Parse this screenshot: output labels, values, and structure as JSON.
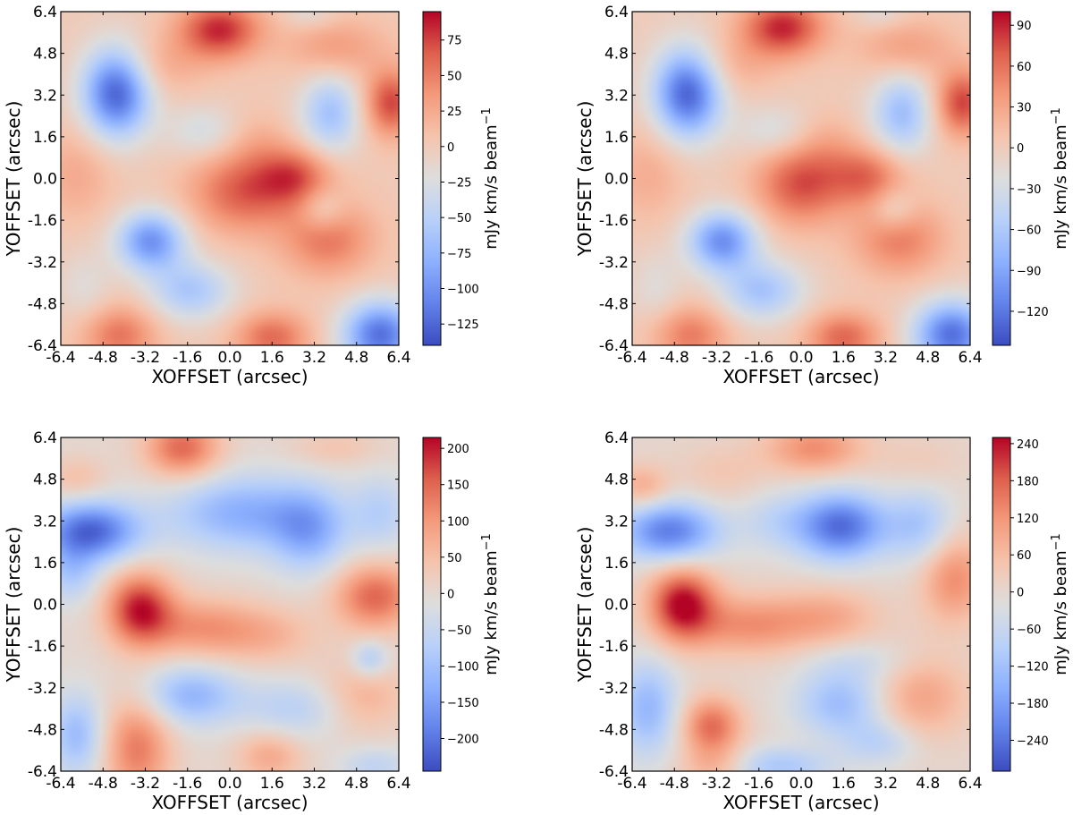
{
  "chart_data": [
    {
      "type": "heatmap",
      "xlabel": "XOFFSET (arcsec)",
      "ylabel": "YOFFSET (arcsec)",
      "x_ticks": [
        "-6.4",
        "-4.8",
        "-3.2",
        "-1.6",
        "0.0",
        "1.6",
        "3.2",
        "4.8",
        "6.4"
      ],
      "y_ticks": [
        "-6.4",
        "-4.8",
        "-3.2",
        "-1.6",
        "0.0",
        "1.6",
        "3.2",
        "4.8",
        "6.4"
      ],
      "xlim": [
        -6.4,
        6.4
      ],
      "ylim": [
        6.4,
        -6.4
      ],
      "colormap": "coolwarm",
      "colorbar": {
        "label_prefix": "mJy km/s beam",
        "label_exponent": "−1",
        "range": [
          -140,
          95
        ],
        "ticks": [
          75,
          50,
          25,
          0,
          -25,
          -50,
          -75,
          -100,
          -125
        ],
        "tick_labels": [
          "75",
          "50",
          "25",
          "0",
          "−25",
          "−50",
          "−75",
          "−100",
          "−125"
        ]
      },
      "blobs": [
        {
          "x": -4.2,
          "y": -6.0,
          "amp": 55,
          "sx": 1.0,
          "sy": 0.8
        },
        {
          "x": 1.6,
          "y": -6.1,
          "amp": 60,
          "sx": 1.0,
          "sy": 0.7
        },
        {
          "x": 5.7,
          "y": -6.0,
          "amp": -120,
          "sx": 1.0,
          "sy": 0.9
        },
        {
          "x": -1.5,
          "y": -4.3,
          "amp": -60,
          "sx": 1.1,
          "sy": 0.8
        },
        {
          "x": -5.5,
          "y": -4.2,
          "amp": -20,
          "sx": 0.7,
          "sy": 1.0
        },
        {
          "x": -3.0,
          "y": -2.4,
          "amp": -100,
          "sx": 0.9,
          "sy": 0.8
        },
        {
          "x": 0.5,
          "y": -0.5,
          "amp": 65,
          "sx": 1.4,
          "sy": 1.1
        },
        {
          "x": 2.5,
          "y": 0.1,
          "amp": 60,
          "sx": 1.0,
          "sy": 0.8
        },
        {
          "x": 3.7,
          "y": -2.3,
          "amp": 55,
          "sx": 1.2,
          "sy": 1.0
        },
        {
          "x": 3.5,
          "y": -1.2,
          "amp": -35,
          "sx": 0.6,
          "sy": 0.6
        },
        {
          "x": -5.8,
          "y": 0.2,
          "amp": 25,
          "sx": 1.0,
          "sy": 1.3
        },
        {
          "x": -4.3,
          "y": 3.3,
          "amp": -130,
          "sx": 0.9,
          "sy": 1.2
        },
        {
          "x": -1.0,
          "y": 1.8,
          "amp": -30,
          "sx": 1.0,
          "sy": 0.7
        },
        {
          "x": 3.8,
          "y": 2.5,
          "amp": -65,
          "sx": 0.8,
          "sy": 1.1
        },
        {
          "x": 6.1,
          "y": 2.9,
          "amp": 75,
          "sx": 0.7,
          "sy": 0.9
        },
        {
          "x": -0.4,
          "y": 5.7,
          "amp": 85,
          "sx": 1.1,
          "sy": 0.8
        },
        {
          "x": -2.8,
          "y": 4.3,
          "amp": 25,
          "sx": 1.2,
          "sy": 0.8
        },
        {
          "x": 4.0,
          "y": 5.0,
          "amp": 35,
          "sx": 1.3,
          "sy": 0.8
        },
        {
          "x": 3.0,
          "y": 6.3,
          "amp": -20,
          "sx": 0.7,
          "sy": 0.4
        },
        {
          "x": 1.0,
          "y": 1.5,
          "amp": 15,
          "sx": 0.8,
          "sy": 0.8
        }
      ]
    },
    {
      "type": "heatmap",
      "xlabel": "XOFFSET (arcsec)",
      "ylabel": "YOFFSET (arcsec)",
      "x_ticks": [
        "-6.4",
        "-4.8",
        "-3.2",
        "-1.6",
        "0.0",
        "1.6",
        "3.2",
        "4.8",
        "6.4"
      ],
      "y_ticks": [
        "-6.4",
        "-4.8",
        "-3.2",
        "-1.6",
        "0.0",
        "1.6",
        "3.2",
        "4.8",
        "6.4"
      ],
      "xlim": [
        -6.4,
        6.4
      ],
      "ylim": [
        6.4,
        -6.4
      ],
      "colormap": "coolwarm",
      "colorbar": {
        "label_prefix": "mJy km/s beam",
        "label_exponent": "−1",
        "range": [
          -145,
          100
        ],
        "ticks": [
          90,
          60,
          30,
          0,
          -30,
          -60,
          -90,
          -120
        ],
        "tick_labels": [
          "90",
          "60",
          "30",
          "0",
          "−30",
          "−60",
          "−90",
          "−120"
        ]
      },
      "blobs": [
        {
          "x": -4.2,
          "y": -6.0,
          "amp": 55,
          "sx": 1.0,
          "sy": 0.8
        },
        {
          "x": 1.6,
          "y": -6.1,
          "amp": 65,
          "sx": 1.0,
          "sy": 0.7
        },
        {
          "x": 5.7,
          "y": -6.0,
          "amp": -125,
          "sx": 1.0,
          "sy": 0.9
        },
        {
          "x": -1.5,
          "y": -4.3,
          "amp": -65,
          "sx": 1.1,
          "sy": 0.8
        },
        {
          "x": -5.5,
          "y": -4.2,
          "amp": -20,
          "sx": 0.7,
          "sy": 1.0
        },
        {
          "x": -3.0,
          "y": -2.4,
          "amp": -105,
          "sx": 0.9,
          "sy": 0.8
        },
        {
          "x": 0.0,
          "y": -0.2,
          "amp": 75,
          "sx": 1.2,
          "sy": 1.1
        },
        {
          "x": 2.5,
          "y": 0.1,
          "amp": 60,
          "sx": 1.0,
          "sy": 0.8
        },
        {
          "x": 3.7,
          "y": -2.3,
          "amp": 55,
          "sx": 1.2,
          "sy": 1.0
        },
        {
          "x": 3.5,
          "y": -1.2,
          "amp": -35,
          "sx": 0.6,
          "sy": 0.6
        },
        {
          "x": -5.8,
          "y": 0.2,
          "amp": 25,
          "sx": 1.0,
          "sy": 1.3
        },
        {
          "x": -4.3,
          "y": 3.3,
          "amp": -135,
          "sx": 0.9,
          "sy": 1.2
        },
        {
          "x": -1.0,
          "y": 1.8,
          "amp": -30,
          "sx": 1.0,
          "sy": 0.7
        },
        {
          "x": 3.8,
          "y": 2.5,
          "amp": -70,
          "sx": 0.8,
          "sy": 1.1
        },
        {
          "x": 6.1,
          "y": 2.9,
          "amp": 80,
          "sx": 0.7,
          "sy": 0.9
        },
        {
          "x": -0.7,
          "y": 5.8,
          "amp": 90,
          "sx": 1.1,
          "sy": 0.8
        },
        {
          "x": -2.8,
          "y": 4.3,
          "amp": 25,
          "sx": 1.2,
          "sy": 0.8
        },
        {
          "x": 4.0,
          "y": 5.0,
          "amp": 35,
          "sx": 1.3,
          "sy": 0.8
        },
        {
          "x": 3.0,
          "y": 6.3,
          "amp": -20,
          "sx": 0.7,
          "sy": 0.4
        },
        {
          "x": 1.0,
          "y": 1.5,
          "amp": 15,
          "sx": 0.8,
          "sy": 0.8
        }
      ]
    },
    {
      "type": "heatmap",
      "xlabel": "XOFFSET (arcsec)",
      "ylabel": "YOFFSET (arcsec)",
      "x_ticks": [
        "-6.4",
        "-4.8",
        "-3.2",
        "-1.6",
        "0.0",
        "1.6",
        "3.2",
        "4.8",
        "6.4"
      ],
      "y_ticks": [
        "-6.4",
        "-4.8",
        "-3.2",
        "-1.6",
        "0.0",
        "1.6",
        "3.2",
        "4.8",
        "6.4"
      ],
      "xlim": [
        -6.4,
        6.4
      ],
      "ylim": [
        6.4,
        -6.4
      ],
      "colormap": "coolwarm",
      "colorbar": {
        "label_prefix": "mJy km/s beam",
        "label_exponent": "−1",
        "range": [
          -245,
          215
        ],
        "ticks": [
          200,
          150,
          100,
          50,
          0,
          -50,
          -100,
          -150,
          -200
        ],
        "tick_labels": [
          "200",
          "150",
          "100",
          "50",
          "0",
          "−50",
          "−100",
          "−150",
          "−200"
        ]
      },
      "blobs": [
        {
          "x": -3.5,
          "y": -5.5,
          "amp": 130,
          "sx": 0.9,
          "sy": 1.4
        },
        {
          "x": 1.5,
          "y": -5.8,
          "amp": 80,
          "sx": 0.9,
          "sy": 0.7
        },
        {
          "x": -5.8,
          "y": -5.0,
          "amp": -110,
          "sx": 0.7,
          "sy": 1.1
        },
        {
          "x": -1.5,
          "y": -3.5,
          "amp": -120,
          "sx": 1.3,
          "sy": 0.8
        },
        {
          "x": 2.5,
          "y": -4.0,
          "amp": -70,
          "sx": 1.4,
          "sy": 0.8
        },
        {
          "x": 5.5,
          "y": -6.2,
          "amp": -60,
          "sx": 0.9,
          "sy": 0.5
        },
        {
          "x": 5.0,
          "y": -3.5,
          "amp": 70,
          "sx": 1.2,
          "sy": 1.0
        },
        {
          "x": 5.3,
          "y": -2.1,
          "amp": -90,
          "sx": 0.5,
          "sy": 0.5
        },
        {
          "x": -3.4,
          "y": -0.2,
          "amp": 200,
          "sx": 0.9,
          "sy": 1.0
        },
        {
          "x": -1.0,
          "y": -0.9,
          "amp": 100,
          "sx": 1.4,
          "sy": 0.8
        },
        {
          "x": 1.5,
          "y": -1.2,
          "amp": 60,
          "sx": 1.3,
          "sy": 0.8
        },
        {
          "x": 5.5,
          "y": 0.3,
          "amp": 150,
          "sx": 1.1,
          "sy": 0.9
        },
        {
          "x": -5.3,
          "y": 2.8,
          "amp": -220,
          "sx": 1.3,
          "sy": 0.8
        },
        {
          "x": -6.0,
          "y": 1.2,
          "amp": -80,
          "sx": 0.7,
          "sy": 0.8
        },
        {
          "x": 0.5,
          "y": 3.5,
          "amp": -130,
          "sx": 2.0,
          "sy": 1.0
        },
        {
          "x": 3.0,
          "y": 2.8,
          "amp": -120,
          "sx": 1.0,
          "sy": 1.1
        },
        {
          "x": 5.7,
          "y": 3.5,
          "amp": -70,
          "sx": 0.8,
          "sy": 1.0
        },
        {
          "x": -1.8,
          "y": 6.0,
          "amp": 150,
          "sx": 1.0,
          "sy": 0.8
        },
        {
          "x": -5.8,
          "y": 4.8,
          "amp": 50,
          "sx": 0.8,
          "sy": 0.6
        },
        {
          "x": 4.0,
          "y": 6.0,
          "amp": 40,
          "sx": 1.2,
          "sy": 0.5
        }
      ]
    },
    {
      "type": "heatmap",
      "xlabel": "XOFFSET (arcsec)",
      "ylabel": "YOFFSET (arcsec)",
      "x_ticks": [
        "-6.4",
        "-4.8",
        "-3.2",
        "-1.6",
        "0.0",
        "1.6",
        "3.2",
        "4.8",
        "6.4"
      ],
      "y_ticks": [
        "-6.4",
        "-4.8",
        "-3.2",
        "-1.6",
        "0.0",
        "1.6",
        "3.2",
        "4.8",
        "6.4"
      ],
      "xlim": [
        -6.4,
        6.4
      ],
      "ylim": [
        6.4,
        -6.4
      ],
      "colormap": "coolwarm",
      "colorbar": {
        "label_prefix": "mJy km/s beam",
        "label_exponent": "−1",
        "range": [
          -290,
          250
        ],
        "ticks": [
          240,
          180,
          120,
          60,
          0,
          -60,
          -120,
          -180,
          -240
        ],
        "tick_labels": [
          "240",
          "180",
          "120",
          "60",
          "0",
          "−60",
          "−120",
          "−180",
          "−240"
        ]
      },
      "blobs": [
        {
          "x": -3.4,
          "y": -4.7,
          "amp": 170,
          "sx": 0.8,
          "sy": 0.8
        },
        {
          "x": -3.2,
          "y": -6.2,
          "amp": 80,
          "sx": 1.0,
          "sy": 0.5
        },
        {
          "x": -5.8,
          "y": -4.0,
          "amp": -140,
          "sx": 0.8,
          "sy": 1.3
        },
        {
          "x": -1.0,
          "y": -6.2,
          "amp": -110,
          "sx": 1.5,
          "sy": 0.5
        },
        {
          "x": 1.5,
          "y": -3.8,
          "amp": -130,
          "sx": 1.2,
          "sy": 0.9
        },
        {
          "x": 3.0,
          "y": -5.3,
          "amp": -80,
          "sx": 1.0,
          "sy": 0.6
        },
        {
          "x": 4.5,
          "y": -3.5,
          "amp": 100,
          "sx": 1.3,
          "sy": 1.2
        },
        {
          "x": 2.5,
          "y": -2.2,
          "amp": -50,
          "sx": 1.5,
          "sy": 0.6
        },
        {
          "x": -4.5,
          "y": 0.0,
          "amp": 250,
          "sx": 0.9,
          "sy": 1.0
        },
        {
          "x": -2.0,
          "y": -0.8,
          "amp": 120,
          "sx": 1.5,
          "sy": 0.8
        },
        {
          "x": 1.0,
          "y": -0.5,
          "amp": 90,
          "sx": 1.4,
          "sy": 0.8
        },
        {
          "x": 5.8,
          "y": 1.0,
          "amp": 130,
          "sx": 0.9,
          "sy": 1.2
        },
        {
          "x": -5.0,
          "y": 2.8,
          "amp": -230,
          "sx": 1.3,
          "sy": 0.8
        },
        {
          "x": 1.5,
          "y": 3.0,
          "amp": -250,
          "sx": 1.2,
          "sy": 0.9
        },
        {
          "x": -1.0,
          "y": 3.2,
          "amp": -60,
          "sx": 1.0,
          "sy": 0.8
        },
        {
          "x": 4.5,
          "y": 3.0,
          "amp": -110,
          "sx": 0.9,
          "sy": 1.0
        },
        {
          "x": -6.0,
          "y": 4.5,
          "amp": 90,
          "sx": 0.7,
          "sy": 0.6
        },
        {
          "x": 0.5,
          "y": 6.0,
          "amp": 130,
          "sx": 1.3,
          "sy": 0.7
        },
        {
          "x": -3.0,
          "y": 5.0,
          "amp": 40,
          "sx": 1.2,
          "sy": 0.8
        },
        {
          "x": 4.5,
          "y": 5.5,
          "amp": 30,
          "sx": 1.2,
          "sy": 0.7
        }
      ]
    }
  ]
}
